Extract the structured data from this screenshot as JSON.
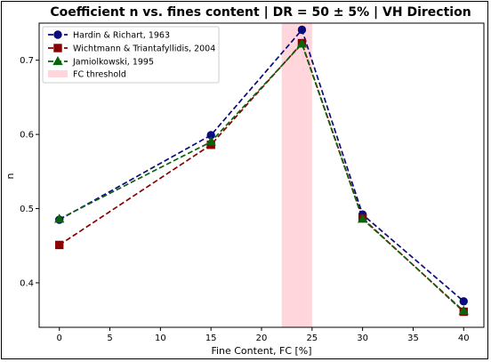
{
  "chart_data": {
    "type": "line",
    "title": "Coefficient n vs. fines content | DR = 50 ± 5% | VH Direction",
    "xlabel": "Fine Content, FC [%]",
    "ylabel": "n",
    "xlim": [
      -2,
      42
    ],
    "ylim": [
      0.34,
      0.75
    ],
    "xticks": [
      "0",
      "5",
      "10",
      "15",
      "20",
      "25",
      "30",
      "35",
      "40"
    ],
    "xtick_values": [
      0,
      5,
      10,
      15,
      20,
      25,
      30,
      35,
      40
    ],
    "yticks": [
      "0.4",
      "0.5",
      "0.6",
      "0.7"
    ],
    "ytick_values": [
      0.4,
      0.5,
      0.6,
      0.7
    ],
    "grid": false,
    "legend_position": "top-left",
    "x": [
      0,
      15,
      24,
      30,
      40
    ],
    "series": [
      {
        "name": "Hardin & Richart, 1963",
        "values": [
          0.485,
          0.599,
          0.741,
          0.492,
          0.375
        ],
        "color": "#0b0b7e",
        "marker": "circle",
        "linestyle": "dashed"
      },
      {
        "name": "Wichtmann & Triantafyllidis, 2004",
        "values": [
          0.451,
          0.586,
          0.723,
          0.487,
          0.361
        ],
        "color": "#8b0000",
        "marker": "square",
        "linestyle": "dashed"
      },
      {
        "name": "Jamiolkowski, 1995",
        "values": [
          0.486,
          0.59,
          0.722,
          0.486,
          0.362
        ],
        "color": "#0a640a",
        "marker": "triangle",
        "linestyle": "dashed"
      }
    ],
    "shaded_band": {
      "label": "FC threshold",
      "x_from": 22,
      "x_to": 25,
      "color": "#ffd6db"
    }
  }
}
